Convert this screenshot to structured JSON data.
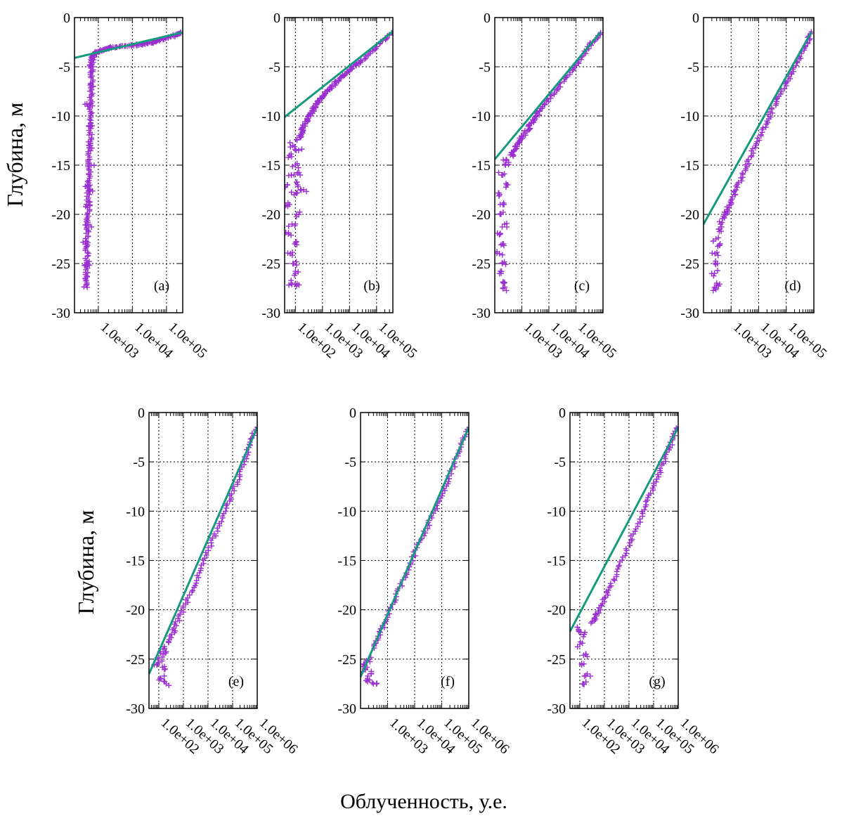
{
  "figure": {
    "ylabel": "Глубина, м",
    "xlabel": "Облученность, у.е.",
    "colors": {
      "data": "#9a2fd0",
      "fit": "#159a7e"
    }
  },
  "chart_data": [
    {
      "id": "a",
      "type": "scatter",
      "label": "(a)",
      "xscale": "log",
      "xlim": [
        200,
        300000
      ],
      "ylim": [
        -30,
        0
      ],
      "yticks": [
        0,
        -5,
        -10,
        -15,
        -20,
        -25,
        -30
      ],
      "xticks": [
        {
          "v": 1000,
          "t": "1.0e+03"
        },
        {
          "v": 10000,
          "t": "1.0e+04"
        },
        {
          "v": 100000,
          "t": "1.0e+05"
        }
      ],
      "fit": [
        [
          200,
          -4.1
        ],
        [
          300000,
          -1.5
        ]
      ],
      "data": {
        "profile": [
          [
            300000,
            -1.5
          ],
          [
            150000,
            -1.9
          ],
          [
            80000,
            -2.2
          ],
          [
            40000,
            -2.5
          ],
          [
            20000,
            -2.7
          ],
          [
            8000,
            -2.9
          ],
          [
            3000,
            -3.0
          ],
          [
            1500,
            -3.2
          ],
          [
            900,
            -3.5
          ],
          [
            700,
            -3.9
          ],
          [
            650,
            -4.5
          ],
          [
            640,
            -6
          ],
          [
            620,
            -8
          ],
          [
            600,
            -10
          ],
          [
            580,
            -12
          ],
          [
            560,
            -14
          ],
          [
            540,
            -16
          ],
          [
            520,
            -18
          ],
          [
            500,
            -20
          ],
          [
            480,
            -22
          ],
          [
            460,
            -24
          ],
          [
            440,
            -26
          ],
          [
            420,
            -27.6
          ]
        ],
        "scatter": [
          [
            600,
            -5
          ],
          [
            700,
            -7
          ],
          [
            500,
            -9
          ],
          [
            650,
            -11
          ],
          [
            550,
            -13
          ],
          [
            620,
            -15
          ],
          [
            480,
            -17
          ],
          [
            560,
            -17.5
          ],
          [
            450,
            -19
          ],
          [
            500,
            -21
          ],
          [
            430,
            -23
          ],
          [
            470,
            -25
          ],
          [
            420,
            -26.5
          ]
        ]
      }
    },
    {
      "id": "b",
      "type": "scatter",
      "label": "(b)",
      "xscale": "log",
      "xlim": [
        40,
        400000
      ],
      "ylim": [
        -30,
        0
      ],
      "yticks": [
        0,
        -5,
        -10,
        -15,
        -20,
        -25,
        -30
      ],
      "xticks": [
        {
          "v": 100,
          "t": "1.0e+02"
        },
        {
          "v": 1000,
          "t": "1.0e+03"
        },
        {
          "v": 10000,
          "t": "1.0e+04"
        },
        {
          "v": 100000,
          "t": "1.0e+05"
        }
      ],
      "fit": [
        [
          40,
          -10.1
        ],
        [
          400000,
          -1.4
        ]
      ],
      "data": {
        "profile": [
          [
            400000,
            -1.5
          ],
          [
            100000,
            -3.0
          ],
          [
            30000,
            -4.3
          ],
          [
            10000,
            -5.3
          ],
          [
            4000,
            -6.3
          ],
          [
            2000,
            -7.2
          ],
          [
            1000,
            -8.0
          ],
          [
            600,
            -8.8
          ],
          [
            400,
            -9.6
          ],
          [
            250,
            -10.5
          ],
          [
            180,
            -11.5
          ],
          [
            120,
            -12.5
          ]
        ],
        "scatter": [
          [
            80,
            -13
          ],
          [
            60,
            -14
          ],
          [
            100,
            -15
          ],
          [
            70,
            -16
          ],
          [
            120,
            -17
          ],
          [
            200,
            -17.5
          ],
          [
            90,
            -18
          ],
          [
            60,
            -19
          ],
          [
            110,
            -20
          ],
          [
            75,
            -21
          ],
          [
            55,
            -22
          ],
          [
            95,
            -23
          ],
          [
            65,
            -24
          ],
          [
            85,
            -25
          ],
          [
            100,
            -26
          ],
          [
            70,
            -27
          ],
          [
            110,
            -27.3
          ],
          [
            130,
            -13.5
          ],
          [
            150,
            -16
          ],
          [
            50,
            -17
          ]
        ]
      }
    },
    {
      "id": "c",
      "type": "scatter",
      "label": "(c)",
      "xscale": "log",
      "xlim": [
        100,
        1000000
      ],
      "ylim": [
        -30,
        0
      ],
      "yticks": [
        0,
        -5,
        -10,
        -15,
        -20,
        -25,
        -30
      ],
      "xticks": [
        {
          "v": 1000,
          "t": "1.0e+03"
        },
        {
          "v": 10000,
          "t": "1.0e+04"
        },
        {
          "v": 100000,
          "t": "1.0e+05"
        }
      ],
      "fit": [
        [
          100,
          -14.4
        ],
        [
          800000,
          -1.5
        ]
      ],
      "data": {
        "profile": [
          [
            800000,
            -1.5
          ],
          [
            300000,
            -3.0
          ],
          [
            100000,
            -4.8
          ],
          [
            30000,
            -6.6
          ],
          [
            10000,
            -8.3
          ],
          [
            4000,
            -9.8
          ],
          [
            2000,
            -11.0
          ],
          [
            1000,
            -12.2
          ],
          [
            600,
            -13.2
          ],
          [
            400,
            -14.2
          ]
        ],
        "scatter": [
          [
            250,
            -15
          ],
          [
            180,
            -16
          ],
          [
            300,
            -17
          ],
          [
            150,
            -18
          ],
          [
            200,
            -19
          ],
          [
            170,
            -20
          ],
          [
            230,
            -21
          ],
          [
            160,
            -22
          ],
          [
            210,
            -23
          ],
          [
            150,
            -24
          ],
          [
            190,
            -25
          ],
          [
            170,
            -26
          ],
          [
            220,
            -27
          ],
          [
            200,
            -27.5
          ],
          [
            260,
            -14.5
          ]
        ]
      }
    },
    {
      "id": "d",
      "type": "scatter",
      "label": "(d)",
      "xscale": "log",
      "xlim": [
        100,
        1000000
      ],
      "ylim": [
        -30,
        0
      ],
      "yticks": [
        0,
        -5,
        -10,
        -15,
        -20,
        -25,
        -30
      ],
      "xticks": [
        {
          "v": 1000,
          "t": "1.0e+03"
        },
        {
          "v": 10000,
          "t": "1.0e+04"
        },
        {
          "v": 100000,
          "t": "1.0e+05"
        }
      ],
      "fit": [
        [
          100,
          -21
        ],
        [
          800000,
          -1.5
        ]
      ],
      "data": {
        "profile": [
          [
            800000,
            -1.5
          ],
          [
            400000,
            -3.5
          ],
          [
            150000,
            -5.8
          ],
          [
            50000,
            -8.2
          ],
          [
            20000,
            -10.5
          ],
          [
            8000,
            -12.8
          ],
          [
            3500,
            -15.2
          ],
          [
            1500,
            -17.5
          ],
          [
            800,
            -19.3
          ],
          [
            500,
            -20.5
          ]
        ],
        "scatter": [
          [
            350,
            -21.5
          ],
          [
            280,
            -22.5
          ],
          [
            400,
            -23
          ],
          [
            260,
            -24
          ],
          [
            320,
            -25
          ],
          [
            250,
            -26
          ],
          [
            300,
            -27
          ],
          [
            280,
            -27.5
          ],
          [
            420,
            -21
          ]
        ]
      }
    },
    {
      "id": "e",
      "type": "scatter",
      "label": "(e)",
      "xscale": "log",
      "xlim": [
        40,
        1000000
      ],
      "ylim": [
        -30,
        0
      ],
      "yticks": [
        0,
        -5,
        -10,
        -15,
        -20,
        -25,
        -30
      ],
      "xticks": [
        {
          "v": 100,
          "t": "1.0e+02"
        },
        {
          "v": 1000,
          "t": "1.0e+03"
        },
        {
          "v": 10000,
          "t": "1.0e+04"
        },
        {
          "v": 100000,
          "t": "1.0e+05"
        },
        {
          "v": 1000000,
          "t": "1.0e+06"
        }
      ],
      "fit": [
        [
          40,
          -26.5
        ],
        [
          1000000,
          -1.5
        ]
      ],
      "data": {
        "profile": [
          [
            900000,
            -1.5
          ],
          [
            400000,
            -4.0
          ],
          [
            150000,
            -7.0
          ],
          [
            50000,
            -10.0
          ],
          [
            15000,
            -13.0
          ],
          [
            5000,
            -16.0
          ],
          [
            1500,
            -19.0
          ],
          [
            500,
            -21.5
          ],
          [
            250,
            -23.5
          ]
        ],
        "scatter": [
          [
            150,
            -24
          ],
          [
            100,
            -25
          ],
          [
            180,
            -26
          ],
          [
            120,
            -27
          ],
          [
            200,
            -27.5
          ],
          [
            90,
            -25.5
          ],
          [
            160,
            -24.5
          ]
        ]
      }
    },
    {
      "id": "f",
      "type": "scatter",
      "label": "(f)",
      "xscale": "log",
      "xlim": [
        100,
        1000000
      ],
      "ylim": [
        -30,
        0
      ],
      "yticks": [
        0,
        -5,
        -10,
        -15,
        -20,
        -25,
        -30
      ],
      "xticks": [
        {
          "v": 1000,
          "t": "1.0e+03"
        },
        {
          "v": 10000,
          "t": "1.0e+04"
        },
        {
          "v": 100000,
          "t": "1.0e+05"
        },
        {
          "v": 1000000,
          "t": "1.0e+06"
        }
      ],
      "fit": [
        [
          100,
          -26.8
        ],
        [
          1000000,
          -1.5
        ]
      ],
      "data": {
        "profile": [
          [
            900000,
            -1.5
          ],
          [
            400000,
            -4.2
          ],
          [
            150000,
            -7.2
          ],
          [
            50000,
            -10.2
          ],
          [
            15000,
            -13.2
          ],
          [
            5000,
            -16.2
          ],
          [
            1500,
            -19.5
          ],
          [
            600,
            -22.0
          ],
          [
            300,
            -24.0
          ]
        ],
        "scatter": [
          [
            200,
            -25
          ],
          [
            150,
            -26
          ],
          [
            250,
            -26.5
          ],
          [
            180,
            -27
          ],
          [
            300,
            -27.5
          ],
          [
            130,
            -25.5
          ]
        ]
      }
    },
    {
      "id": "g",
      "type": "scatter",
      "label": "(g)",
      "xscale": "log",
      "xlim": [
        40,
        1000000
      ],
      "ylim": [
        -30,
        0
      ],
      "yticks": [
        0,
        -5,
        -10,
        -15,
        -20,
        -25,
        -30
      ],
      "xticks": [
        {
          "v": 100,
          "t": "1.0e+02"
        },
        {
          "v": 1000,
          "t": "1.0e+03"
        },
        {
          "v": 10000,
          "t": "1.0e+04"
        },
        {
          "v": 100000,
          "t": "1.0e+05"
        },
        {
          "v": 1000000,
          "t": "1.0e+06"
        }
      ],
      "fit": [
        [
          40,
          -22.2
        ],
        [
          1000000,
          -1.5
        ]
      ],
      "data": {
        "profile": [
          [
            900000,
            -1.5
          ],
          [
            400000,
            -3.8
          ],
          [
            150000,
            -6.5
          ],
          [
            50000,
            -9.3
          ],
          [
            15000,
            -12.3
          ],
          [
            5000,
            -15.2
          ],
          [
            1500,
            -18.0
          ],
          [
            600,
            -20.0
          ],
          [
            300,
            -21.5
          ]
        ],
        "scatter": [
          [
            150,
            -22.5
          ],
          [
            100,
            -23.5
          ],
          [
            180,
            -24.5
          ],
          [
            120,
            -25.5
          ],
          [
            200,
            -26.5
          ],
          [
            140,
            -27.5
          ],
          [
            90,
            -22
          ]
        ]
      }
    }
  ]
}
